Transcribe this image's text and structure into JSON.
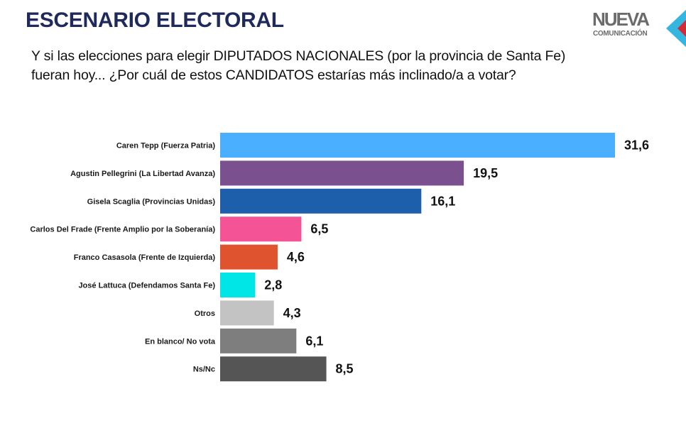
{
  "header": {
    "title": "ESCENARIO ELECTORAL",
    "subtitle_line1": "Y si las elecciones para elegir DIPUTADOS NACIONALES (por la provincia de Santa Fe)",
    "subtitle_line2": "fueran hoy... ¿Por cuál de estos CANDIDATOS estarías más inclinado/a a votar?"
  },
  "logo": {
    "word": "NUEVA",
    "sub": "COMUNICACIÓN",
    "colors": [
      "#35b6e0",
      "#d42a35"
    ]
  },
  "chart_data": {
    "type": "bar",
    "orientation": "horizontal",
    "title": "",
    "xlabel": "",
    "ylabel": "",
    "xlim": [
      0,
      31.6
    ],
    "grid": false,
    "legend": "none",
    "categories": [
      "Caren Tepp (Fuerza Patria)",
      "Agustin Pellegrini (La Libertad Avanza)",
      "Gisela Scaglia (Provincias Unidas)",
      "Carlos Del Frade (Frente Amplio por la Soberanía)",
      "Franco Casasola (Frente de Izquierda)",
      "José Lattuca (Defendamos Santa Fe)",
      "Otros",
      "En blanco/ No vota",
      "Ns/Nc"
    ],
    "values": [
      31.6,
      19.5,
      16.1,
      6.5,
      4.6,
      2.8,
      4.3,
      6.1,
      8.5
    ],
    "value_labels": [
      "31,6",
      "19,5",
      "16,1",
      "6,5",
      "4,6",
      "2,8",
      "4,3",
      "6,1",
      "8,5"
    ],
    "colors": [
      "#4aafff",
      "#7a508f",
      "#1e5fab",
      "#f45495",
      "#e0532f",
      "#00e5e5",
      "#c3c3c3",
      "#7e7e7e",
      "#555555"
    ]
  }
}
